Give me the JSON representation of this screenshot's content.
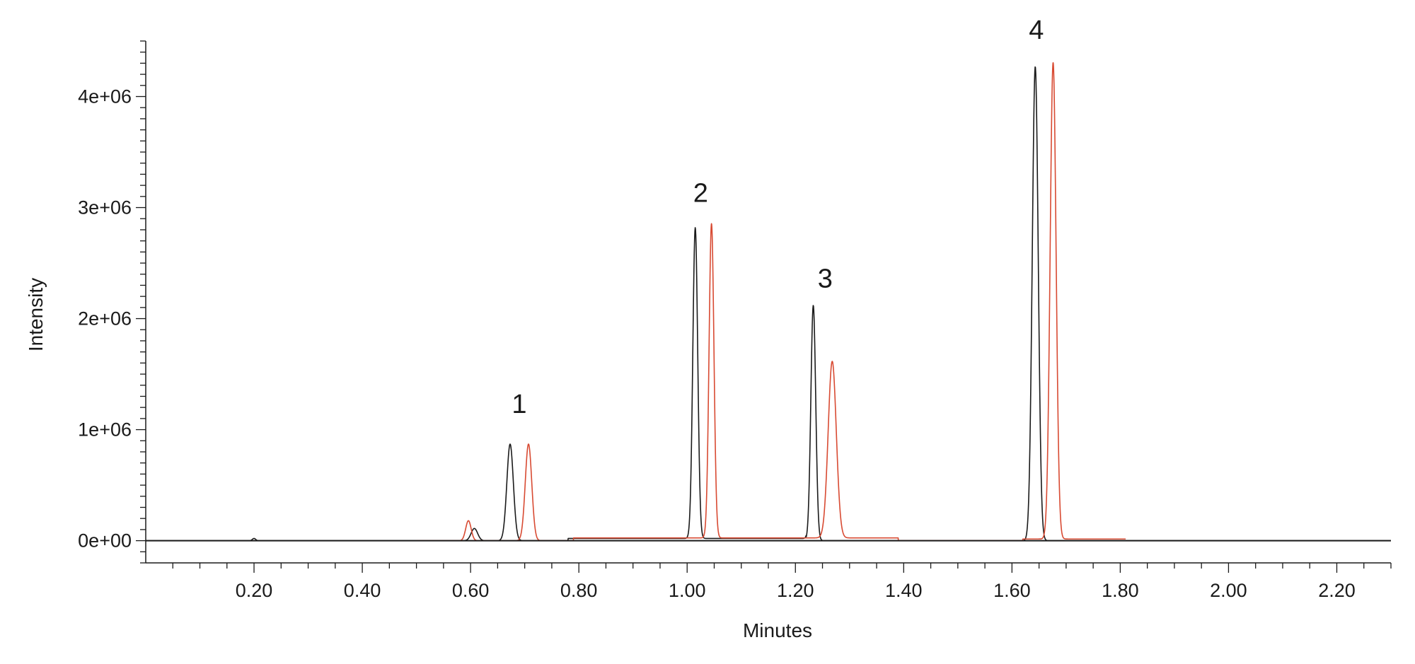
{
  "chart_data": {
    "type": "line",
    "xlabel": "Minutes",
    "ylabel": "Intensity",
    "xlim": [
      0.0,
      2.3
    ],
    "ylim": [
      -200000,
      4500000
    ],
    "x_ticks": [
      0.2,
      0.4,
      0.6,
      0.8,
      1.0,
      1.2,
      1.4,
      1.6,
      1.8,
      2.0,
      2.2
    ],
    "x_tick_labels": [
      "0.20",
      "0.40",
      "0.60",
      "0.80",
      "1.00",
      "1.20",
      "1.40",
      "1.60",
      "1.80",
      "2.00",
      "2.20"
    ],
    "x_minor_step": 0.05,
    "y_ticks": [
      0,
      1000000,
      2000000,
      3000000,
      4000000
    ],
    "y_tick_labels": [
      "0e+00",
      "1e+06",
      "2e+06",
      "3e+06",
      "4e+06"
    ],
    "y_minor_step": 100000,
    "baseline_range": [
      0.0,
      2.3
    ],
    "peak_labels": [
      {
        "text": "1",
        "x": 0.69,
        "y": 1150000
      },
      {
        "text": "2",
        "x": 1.025,
        "y": 3050000
      },
      {
        "text": "3",
        "x": 1.255,
        "y": 2280000
      },
      {
        "text": "4",
        "x": 1.645,
        "y": 4520000
      }
    ],
    "series": [
      {
        "color": "#1a1a1a",
        "peaks": [
          {
            "center": 0.2,
            "height": 20000,
            "width": 0.003
          },
          {
            "center": 0.607,
            "height": 110000,
            "width": 0.006
          },
          {
            "center": 0.673,
            "height": 870000,
            "width": 0.006
          },
          {
            "center": 1.015,
            "height": 2800000,
            "width": 0.0045
          },
          {
            "center": 1.233,
            "height": 2120000,
            "width": 0.0045
          },
          {
            "center": 1.643,
            "height": 4270000,
            "width": 0.0055
          }
        ],
        "plateaus": [
          {
            "from": 0.78,
            "to": 1.22,
            "value": 20000
          }
        ],
        "x": [
          0.0,
          2.3
        ],
        "y": [
          0,
          0
        ]
      },
      {
        "color": "#d84a32",
        "peaks": [
          {
            "center": 0.596,
            "height": 180000,
            "width": 0.005
          },
          {
            "center": 0.707,
            "height": 870000,
            "width": 0.006
          },
          {
            "center": 1.045,
            "height": 2830000,
            "width": 0.0045
          },
          {
            "center": 1.268,
            "height": 1590000,
            "width": 0.0075
          },
          {
            "center": 1.676,
            "height": 4290000,
            "width": 0.0055
          }
        ],
        "plateaus": [
          {
            "from": 0.79,
            "to": 1.39,
            "value": 25000
          },
          {
            "from": 1.62,
            "to": 1.81,
            "value": 15000
          }
        ],
        "x": [
          0.5,
          1.81
        ],
        "y": [
          0,
          0
        ]
      }
    ]
  }
}
